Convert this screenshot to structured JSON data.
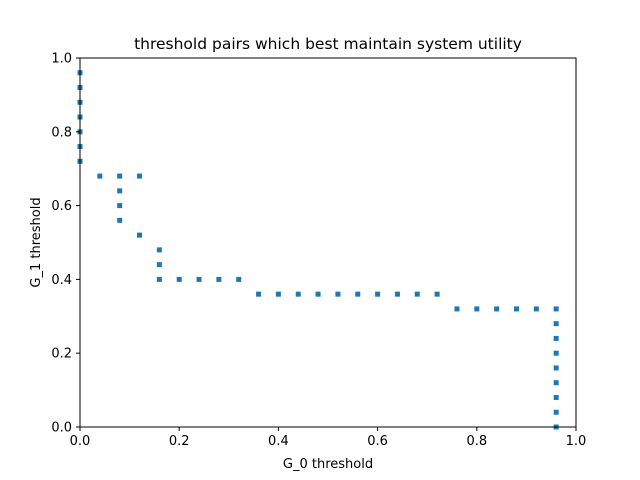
{
  "chart_data": {
    "type": "scatter",
    "title": "threshold pairs which best maintain system utility",
    "xlabel": "G_0 threshold",
    "ylabel": "G_1 threshold",
    "xlim": [
      0.0,
      1.0
    ],
    "ylim": [
      0.0,
      1.0
    ],
    "xticks": [
      "0.0",
      "0.2",
      "0.4",
      "0.6",
      "0.8",
      "1.0"
    ],
    "yticks": [
      "0.0",
      "0.2",
      "0.4",
      "0.6",
      "0.8",
      "1.0"
    ],
    "grid": false,
    "marker": "square",
    "color": "#1f77b4",
    "points": [
      [
        0.0,
        0.96
      ],
      [
        0.0,
        0.92
      ],
      [
        0.0,
        0.88
      ],
      [
        0.0,
        0.84
      ],
      [
        0.0,
        0.8
      ],
      [
        0.0,
        0.76
      ],
      [
        0.0,
        0.72
      ],
      [
        0.04,
        0.68
      ],
      [
        0.08,
        0.68
      ],
      [
        0.12,
        0.68
      ],
      [
        0.08,
        0.64
      ],
      [
        0.08,
        0.6
      ],
      [
        0.08,
        0.56
      ],
      [
        0.12,
        0.52
      ],
      [
        0.16,
        0.48
      ],
      [
        0.16,
        0.44
      ],
      [
        0.16,
        0.4
      ],
      [
        0.2,
        0.4
      ],
      [
        0.24,
        0.4
      ],
      [
        0.28,
        0.4
      ],
      [
        0.32,
        0.4
      ],
      [
        0.36,
        0.36
      ],
      [
        0.4,
        0.36
      ],
      [
        0.44,
        0.36
      ],
      [
        0.48,
        0.36
      ],
      [
        0.52,
        0.36
      ],
      [
        0.56,
        0.36
      ],
      [
        0.6,
        0.36
      ],
      [
        0.64,
        0.36
      ],
      [
        0.68,
        0.36
      ],
      [
        0.72,
        0.36
      ],
      [
        0.76,
        0.32
      ],
      [
        0.8,
        0.32
      ],
      [
        0.84,
        0.32
      ],
      [
        0.88,
        0.32
      ],
      [
        0.92,
        0.32
      ],
      [
        0.96,
        0.32
      ],
      [
        0.96,
        0.28
      ],
      [
        0.96,
        0.24
      ],
      [
        0.96,
        0.2
      ],
      [
        0.96,
        0.16
      ],
      [
        0.96,
        0.12
      ],
      [
        0.96,
        0.08
      ],
      [
        0.96,
        0.04
      ],
      [
        0.96,
        0.0
      ]
    ]
  }
}
